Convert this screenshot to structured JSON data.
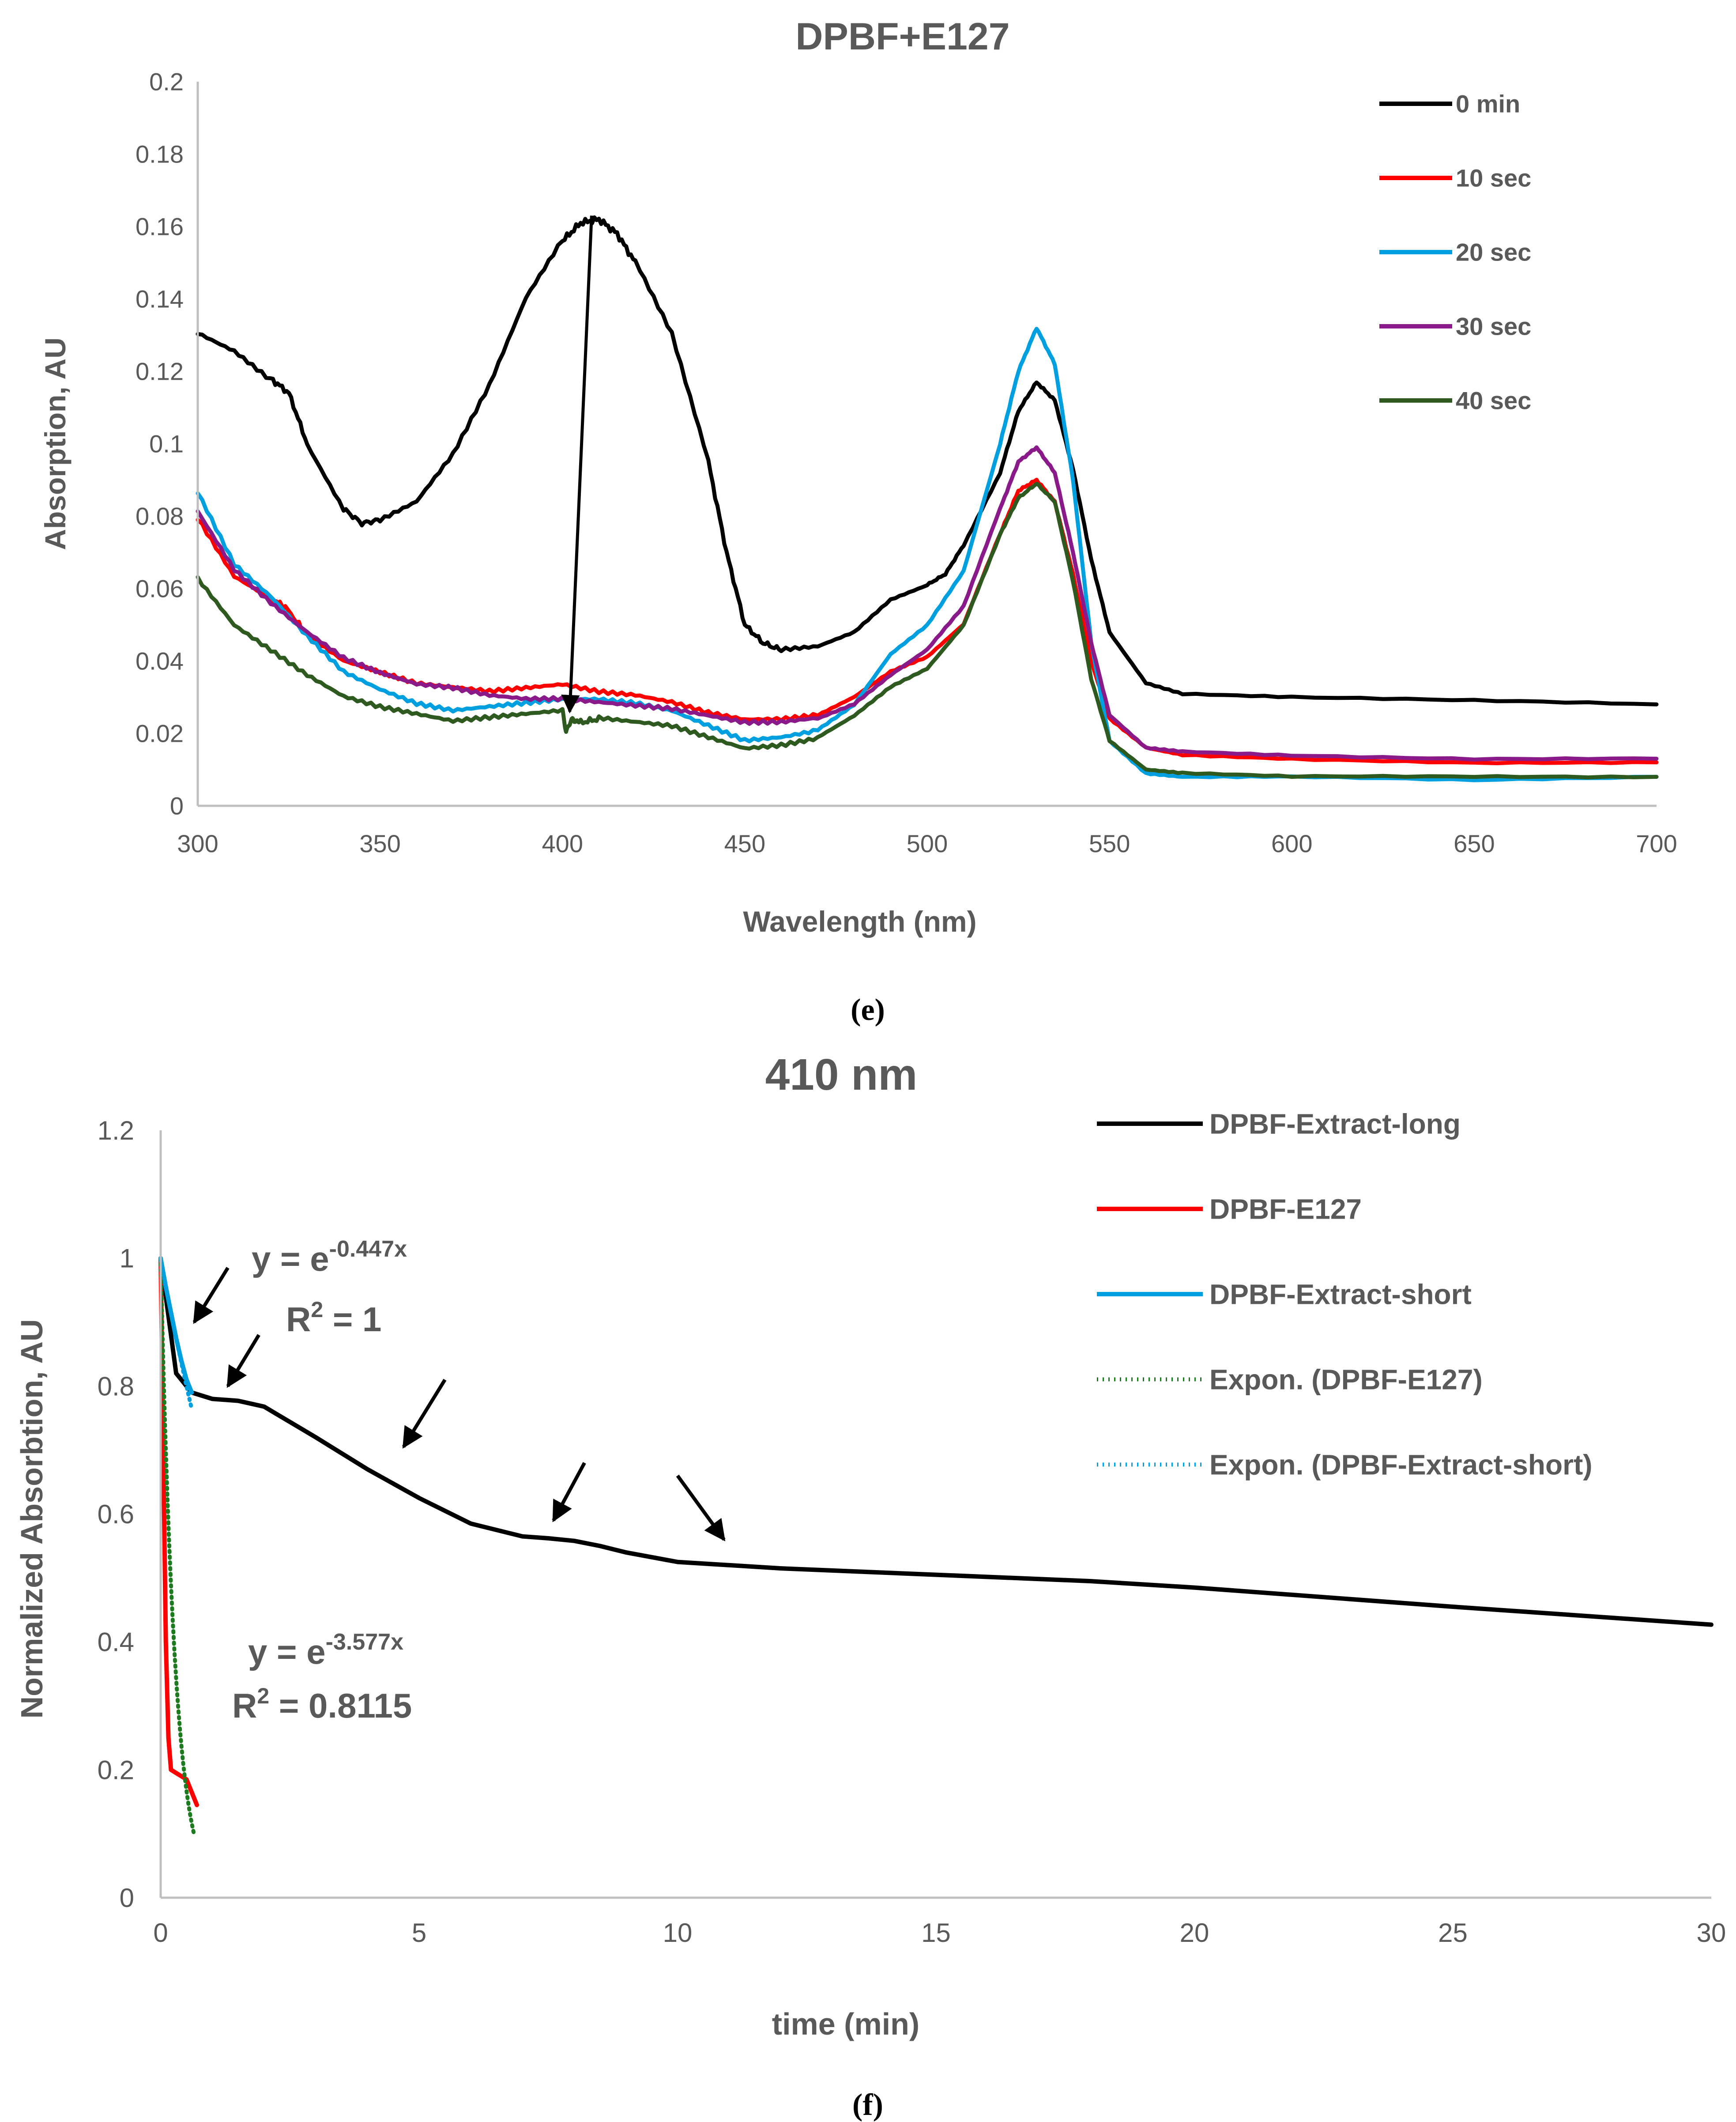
{
  "colors": {
    "text": "#595959",
    "axis": "#bfbfbf",
    "black": "#000000",
    "red": "#ff0000",
    "blue": "#00a0e0",
    "purple": "#8a1a8a",
    "green": "#2e5a20",
    "dotgreen": "#1e7a1e"
  },
  "chart_data": [
    {
      "type": "line",
      "title": "DPBF+E127",
      "xlabel": "Wavelength (nm)",
      "ylabel": "Absorption, AU",
      "xlim": [
        300,
        700
      ],
      "ylim": [
        0,
        0.2
      ],
      "xticks": [
        300,
        350,
        400,
        450,
        500,
        550,
        600,
        650,
        700
      ],
      "yticks": [
        0,
        0.02,
        0.04,
        0.06,
        0.08,
        0.1,
        0.12,
        0.14,
        0.16,
        0.18,
        0.2
      ],
      "ytick_labels": [
        "0",
        "0.02",
        "0.04",
        "0.06",
        "0.08",
        "0.1",
        "0.12",
        "0.14",
        "0.16",
        "0.18",
        "0.2"
      ],
      "grid": false,
      "legend_position": "top-right",
      "caption": "(e)",
      "series": [
        {
          "name": "0 min",
          "color": "#000000",
          "x": [
            300,
            310,
            320,
            325,
            330,
            340,
            345,
            350,
            360,
            370,
            380,
            390,
            400,
            405,
            410,
            415,
            420,
            430,
            440,
            445,
            450,
            455,
            460,
            470,
            480,
            490,
            500,
            505,
            510,
            520,
            525,
            530,
            535,
            540,
            545,
            550,
            560,
            570,
            600,
            650,
            700
          ],
          "y": [
            0.131,
            0.126,
            0.118,
            0.114,
            0.1,
            0.082,
            0.078,
            0.079,
            0.084,
            0.097,
            0.116,
            0.14,
            0.156,
            0.161,
            0.162,
            0.158,
            0.15,
            0.13,
            0.095,
            0.07,
            0.05,
            0.045,
            0.043,
            0.044,
            0.048,
            0.057,
            0.061,
            0.064,
            0.072,
            0.092,
            0.109,
            0.117,
            0.112,
            0.093,
            0.068,
            0.048,
            0.034,
            0.031,
            0.03,
            0.029,
            0.028
          ]
        },
        {
          "name": "10 sec",
          "color": "#ff0000",
          "x": [
            300,
            310,
            320,
            324,
            330,
            340,
            350,
            360,
            370,
            380,
            390,
            400,
            410,
            420,
            430,
            440,
            450,
            460,
            470,
            480,
            490,
            500,
            510,
            520,
            525,
            530,
            535,
            540,
            545,
            550,
            560,
            570,
            600,
            650,
            700
          ],
          "y": [
            0.079,
            0.063,
            0.057,
            0.055,
            0.047,
            0.04,
            0.037,
            0.034,
            0.033,
            0.032,
            0.033,
            0.034,
            0.032,
            0.031,
            0.029,
            0.026,
            0.024,
            0.024,
            0.025,
            0.03,
            0.037,
            0.041,
            0.05,
            0.075,
            0.087,
            0.09,
            0.084,
            0.064,
            0.04,
            0.024,
            0.016,
            0.014,
            0.013,
            0.012,
            0.012
          ]
        },
        {
          "name": "20 sec",
          "color": "#00a0e0",
          "x": [
            300,
            310,
            320,
            330,
            340,
            350,
            360,
            370,
            380,
            390,
            400,
            410,
            420,
            430,
            440,
            450,
            460,
            470,
            480,
            490,
            500,
            510,
            520,
            525,
            530,
            535,
            540,
            545,
            550,
            560,
            570,
            600,
            650,
            700
          ],
          "y": [
            0.087,
            0.067,
            0.058,
            0.047,
            0.037,
            0.032,
            0.028,
            0.026,
            0.027,
            0.028,
            0.029,
            0.029,
            0.028,
            0.026,
            0.022,
            0.018,
            0.019,
            0.021,
            0.028,
            0.042,
            0.05,
            0.065,
            0.1,
            0.12,
            0.132,
            0.122,
            0.09,
            0.045,
            0.018,
            0.009,
            0.008,
            0.008,
            0.007,
            0.008
          ]
        },
        {
          "name": "30 sec",
          "color": "#8a1a8a",
          "x": [
            300,
            310,
            320,
            330,
            340,
            350,
            360,
            370,
            380,
            390,
            400,
            410,
            420,
            430,
            440,
            450,
            460,
            470,
            480,
            490,
            500,
            510,
            520,
            525,
            530,
            535,
            540,
            545,
            550,
            560,
            570,
            600,
            650,
            700
          ],
          "y": [
            0.081,
            0.065,
            0.056,
            0.048,
            0.041,
            0.037,
            0.034,
            0.033,
            0.031,
            0.03,
            0.03,
            0.029,
            0.028,
            0.027,
            0.025,
            0.023,
            0.023,
            0.024,
            0.028,
            0.036,
            0.043,
            0.055,
            0.082,
            0.095,
            0.099,
            0.092,
            0.07,
            0.045,
            0.025,
            0.016,
            0.015,
            0.014,
            0.013,
            0.013
          ]
        },
        {
          "name": "40 sec",
          "color": "#2e5a20",
          "x": [
            300,
            310,
            320,
            330,
            340,
            350,
            360,
            370,
            380,
            390,
            400,
            401,
            403,
            405,
            410,
            420,
            430,
            440,
            450,
            460,
            470,
            480,
            490,
            500,
            510,
            520,
            525,
            530,
            535,
            540,
            545,
            550,
            560,
            570,
            600,
            650,
            700
          ],
          "y": [
            0.063,
            0.05,
            0.043,
            0.036,
            0.03,
            0.027,
            0.025,
            0.023,
            0.024,
            0.025,
            0.026,
            0.021,
            0.024,
            0.023,
            0.024,
            0.023,
            0.022,
            0.019,
            0.016,
            0.017,
            0.019,
            0.025,
            0.033,
            0.038,
            0.05,
            0.075,
            0.085,
            0.089,
            0.084,
            0.062,
            0.035,
            0.018,
            0.01,
            0.009,
            0.008,
            0.008,
            0.008
          ]
        }
      ],
      "annotations": [
        {
          "type": "arrow",
          "from": [
            408,
            0.163
          ],
          "to": [
            402,
            0.026
          ]
        }
      ]
    },
    {
      "type": "line",
      "title": "410 nm",
      "xlabel": "time (min)",
      "ylabel": "Normalized Absorbtion, AU",
      "xlim": [
        0,
        30
      ],
      "ylim": [
        0,
        1.2
      ],
      "xticks": [
        0,
        5,
        10,
        15,
        20,
        25,
        30
      ],
      "yticks": [
        0,
        0.2,
        0.4,
        0.6,
        0.8,
        1,
        1.2
      ],
      "ytick_labels": [
        "0",
        "0.2",
        "0.4",
        "0.6",
        "0.8",
        "1",
        "1.2"
      ],
      "grid": false,
      "legend_position": "top-right",
      "caption": "(f)",
      "series": [
        {
          "name": "DPBF-Extract-long",
          "color": "#000000",
          "style": "solid",
          "x": [
            0,
            0.3,
            0.6,
            1,
            1.5,
            2,
            3,
            4,
            5,
            6,
            7,
            7.5,
            8,
            8.5,
            9,
            10,
            12,
            15,
            18,
            20,
            25,
            30
          ],
          "y": [
            1,
            0.82,
            0.79,
            0.78,
            0.777,
            0.768,
            0.72,
            0.67,
            0.625,
            0.585,
            0.565,
            0.562,
            0.558,
            0.55,
            0.54,
            0.525,
            0.515,
            0.505,
            0.495,
            0.485,
            0.455,
            0.427
          ]
        },
        {
          "name": "DPBF-E127",
          "color": "#ff0000",
          "style": "solid",
          "x": [
            0,
            0.05,
            0.1,
            0.15,
            0.2,
            0.3,
            0.4,
            0.5,
            0.6,
            0.7
          ],
          "y": [
            1,
            0.7,
            0.4,
            0.25,
            0.2,
            0.195,
            0.19,
            0.185,
            0.165,
            0.145
          ]
        },
        {
          "name": "DPBF-Extract-short",
          "color": "#00a0e0",
          "style": "solid",
          "x": [
            0,
            0.1,
            0.2,
            0.3,
            0.4,
            0.5,
            0.6
          ],
          "y": [
            1,
            0.955,
            0.915,
            0.875,
            0.84,
            0.81,
            0.79
          ]
        },
        {
          "name": "Expon. (DPBF-E127)",
          "color": "#1e7a1e",
          "style": "dotted",
          "fit": {
            "a": 1,
            "k": -3.577
          },
          "x_range": [
            0,
            0.65
          ]
        },
        {
          "name": "Expon. (DPBF-Extract-short)",
          "color": "#00a0e0",
          "style": "dotted",
          "fit": {
            "a": 1,
            "k": -0.447
          },
          "x_range": [
            0,
            0.6
          ]
        }
      ],
      "annotations": [
        {
          "type": "equation",
          "base": "y = e",
          "exp": "-0.447x",
          "r2_label": "R",
          "r2_value": " = 1"
        },
        {
          "type": "equation",
          "base": "y = e",
          "exp": "-3.577x",
          "r2_label": "R",
          "r2_value": " = 0.8115"
        }
      ],
      "markers": [
        {
          "from": [
            1.3,
            0.985
          ],
          "to": [
            0.65,
            0.9
          ]
        },
        {
          "from": [
            1.9,
            0.88
          ],
          "to": [
            1.3,
            0.8
          ]
        },
        {
          "from": [
            5.5,
            0.81
          ],
          "to": [
            4.7,
            0.705
          ]
        },
        {
          "from": [
            8.2,
            0.68
          ],
          "to": [
            7.6,
            0.59
          ]
        },
        {
          "from": [
            10.0,
            0.66
          ],
          "to": [
            10.9,
            0.56
          ]
        }
      ]
    }
  ]
}
